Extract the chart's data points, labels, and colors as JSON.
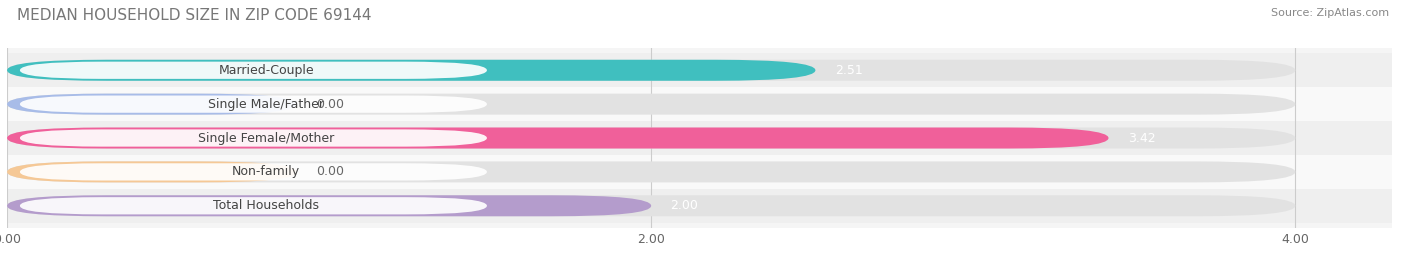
{
  "title": "MEDIAN HOUSEHOLD SIZE IN ZIP CODE 69144",
  "source": "Source: ZipAtlas.com",
  "categories": [
    "Married-Couple",
    "Single Male/Father",
    "Single Female/Mother",
    "Non-family",
    "Total Households"
  ],
  "values": [
    2.51,
    0.0,
    3.42,
    0.0,
    2.0
  ],
  "bar_colors": [
    "#40bfbf",
    "#a8bce8",
    "#f0609a",
    "#f5c896",
    "#b49ccc"
  ],
  "row_bg_colors": [
    "#efefef",
    "#f9f9f9",
    "#efefef",
    "#f9f9f9",
    "#efefef"
  ],
  "xlim": [
    0,
    4.3
  ],
  "xticks": [
    0.0,
    2.0,
    4.0
  ],
  "xtick_labels": [
    "0.00",
    "2.00",
    "4.00"
  ],
  "label_fontsize": 9,
  "value_fontsize": 9,
  "title_fontsize": 11,
  "source_fontsize": 8,
  "bar_height": 0.62,
  "fig_bg_color": "#ffffff",
  "zero_bar_width": 0.9
}
